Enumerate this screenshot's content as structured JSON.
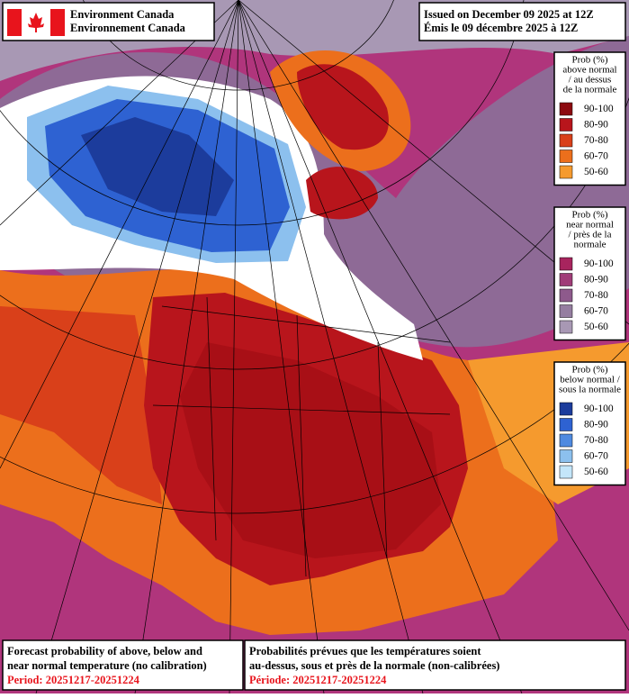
{
  "header": {
    "agency": [
      "Environment Canada",
      "Environnement Canada"
    ],
    "issued": [
      "Issued on December 09 2025 at 12Z",
      "Émis le 09 décembre 2025 à 12Z"
    ]
  },
  "legends": [
    {
      "title": [
        "Prob (%)",
        "above normal",
        "/ au dessus",
        "de la normale"
      ],
      "items": [
        {
          "label": "90-100",
          "color": "#8c0a10"
        },
        {
          "label": "80-90",
          "color": "#b8151c"
        },
        {
          "label": "70-80",
          "color": "#d9401a"
        },
        {
          "label": "60-70",
          "color": "#ec6f1c"
        },
        {
          "label": "50-60",
          "color": "#f59a2e"
        }
      ]
    },
    {
      "title": [
        "Prob (%)",
        "near normal",
        "/ près de la",
        "normale"
      ],
      "items": [
        {
          "label": "90-100",
          "color": "#a8245e"
        },
        {
          "label": "80-90",
          "color": "#a03c78"
        },
        {
          "label": "70-80",
          "color": "#8e5a8c"
        },
        {
          "label": "60-70",
          "color": "#957da0"
        },
        {
          "label": "50-60",
          "color": "#a898b4"
        }
      ]
    },
    {
      "title": [
        "Prob (%)",
        "below normal /",
        "sous la normale"
      ],
      "items": [
        {
          "label": "90-100",
          "color": "#1c3c9c"
        },
        {
          "label": "80-90",
          "color": "#2e62d2"
        },
        {
          "label": "70-80",
          "color": "#4f8ae0"
        },
        {
          "label": "60-70",
          "color": "#8cc0ee"
        },
        {
          "label": "50-60",
          "color": "#c4e6fa"
        }
      ]
    }
  ],
  "footer": {
    "english": {
      "lines": [
        "Forecast probability of above, below and",
        "near normal temperature (no calibration)"
      ],
      "period": "Period: 20251217-20251224"
    },
    "french": {
      "lines": [
        "Probabilités prévues que les températures soient",
        "au-dessus, sous et près de la normale (non-calibrées)"
      ],
      "period": "Période: 20251217-20251224"
    }
  }
}
